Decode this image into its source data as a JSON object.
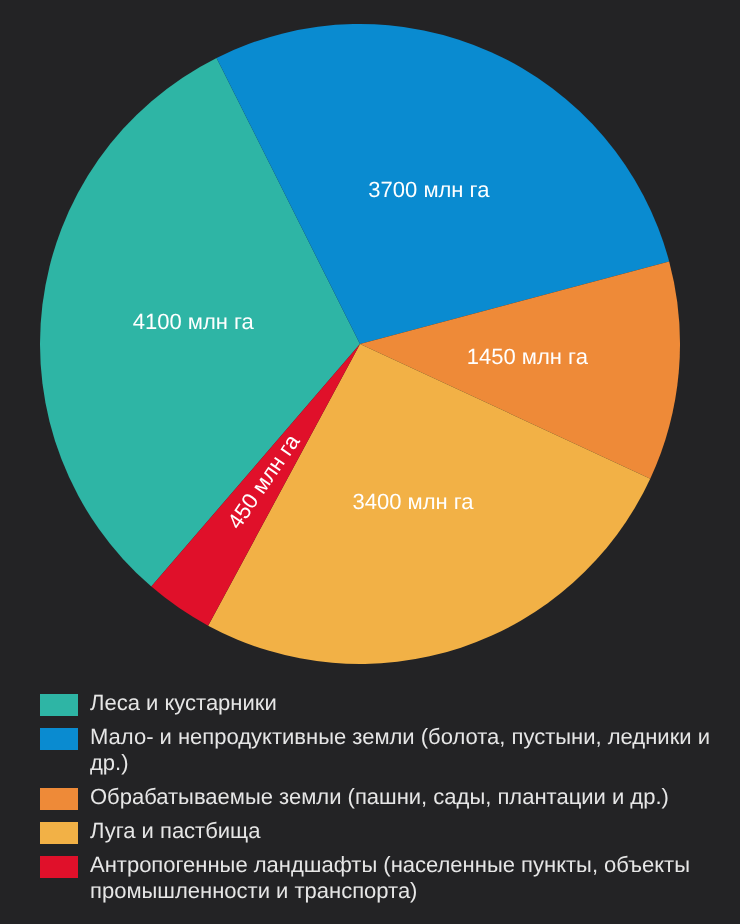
{
  "chart_data": {
    "type": "pie",
    "categories": [
      "Леса и кустарники",
      "Мало- и непродуктивные земли (болота, пустыни, ледники и др.)",
      "Обрабатываемые земли (пашни, сады, плантации и др.)",
      "Луга и пастбища",
      "Антропогенные ландшафты (населенные пункты, объекты промышленности и транспорта)"
    ],
    "values": [
      4100,
      3700,
      1450,
      3400,
      450
    ],
    "value_labels": [
      "4100 млн га",
      "3700 млн га",
      "1450 млн га",
      "3400 млн га",
      "450 млн га"
    ],
    "colors": [
      "#2eb5a5",
      "#0a8bd0",
      "#ee8a38",
      "#f2b146",
      "#e0102a"
    ],
    "legend": "bottom"
  }
}
